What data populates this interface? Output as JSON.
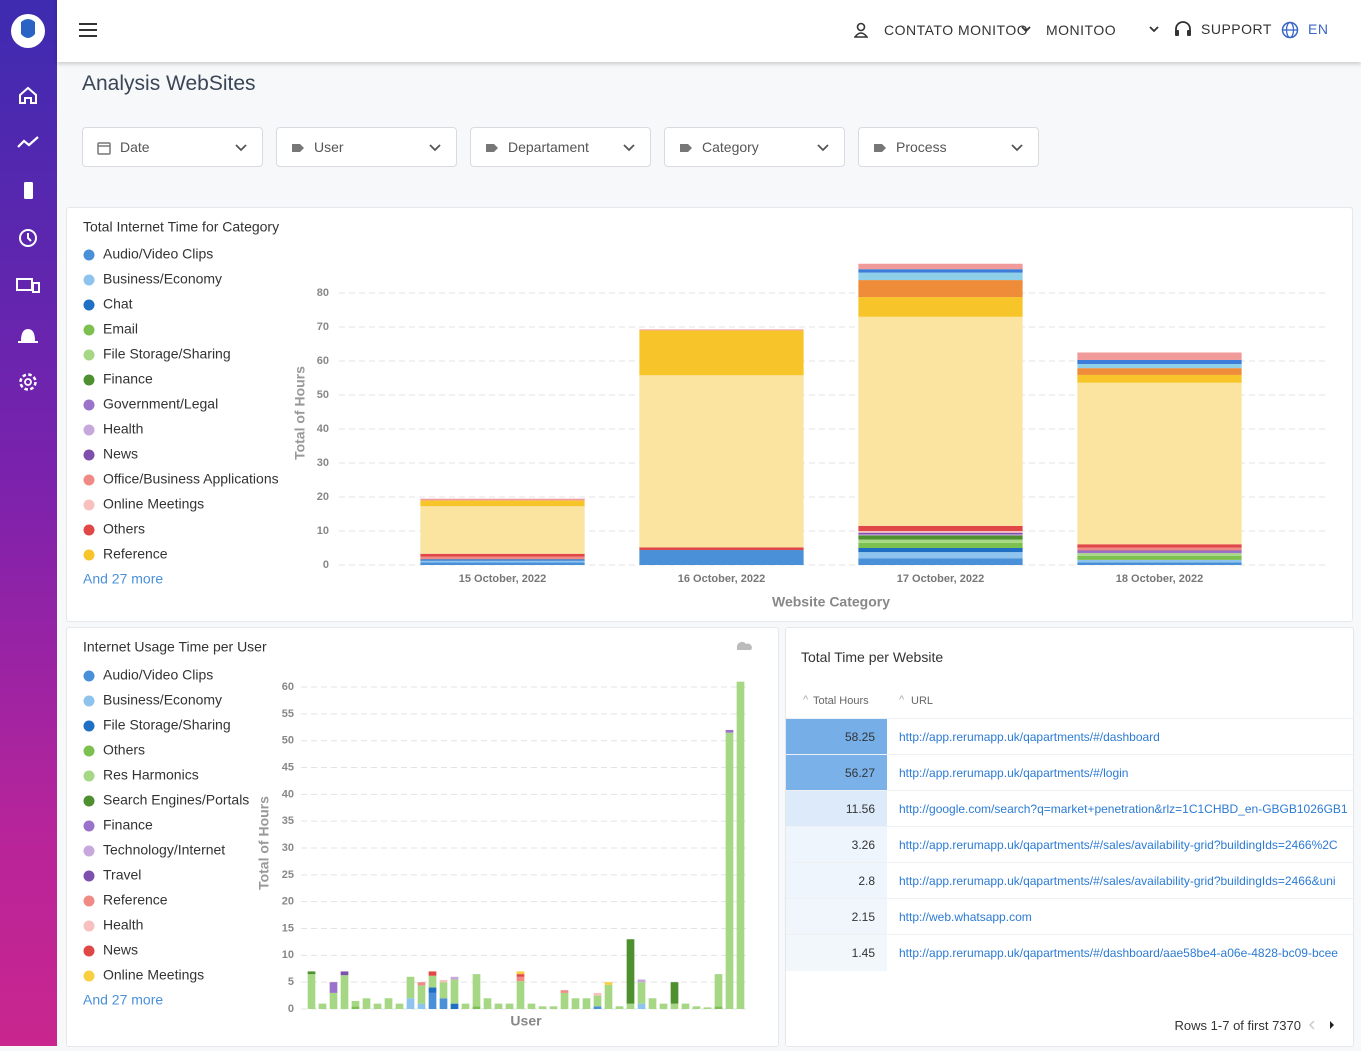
{
  "header": {
    "user": "CONTATO MONITOO",
    "company": "MONITOO",
    "support": "SUPPORT",
    "language": "EN"
  },
  "page_title": "Analysis WebSites",
  "filters": [
    "Date",
    "User",
    "Departament",
    "Category",
    "Process"
  ],
  "chart_data": [
    {
      "type": "stacked-bar",
      "title": "Total Internet Time for Category",
      "x_label": "Website Category",
      "y_label": "Total of Hours",
      "legend_more": "And 27 more",
      "categories": [
        "15 October, 2022",
        "16 October, 2022",
        "17 October, 2022",
        "18 October, 2022"
      ],
      "ylim": [
        0,
        90
      ],
      "yticks": [
        0,
        10,
        20,
        30,
        40,
        50,
        60,
        70,
        80
      ],
      "grid": true,
      "series": [
        {
          "name": "Audio/Video Clips",
          "color": "#4a90d9",
          "values": [
            0.8,
            4.4,
            2.0,
            0.8
          ]
        },
        {
          "name": "Business/Economy",
          "color": "#8ec3ee",
          "values": [
            0.5,
            0,
            1.8,
            0.7
          ]
        },
        {
          "name": "Chat",
          "color": "#1f6fc5",
          "values": [
            0.4,
            0,
            1.2,
            0
          ]
        },
        {
          "name": "Email",
          "color": "#7cc150",
          "values": [
            0,
            0,
            1.5,
            1.2
          ]
        },
        {
          "name": "File Storage/Sharing",
          "color": "#a6d785",
          "values": [
            0,
            0,
            1.0,
            0.8
          ]
        },
        {
          "name": "Finance",
          "color": "#4e8f2f",
          "values": [
            0,
            0,
            1.2,
            0
          ]
        },
        {
          "name": "Government/Legal",
          "color": "#9b72c9",
          "values": [
            0,
            0,
            0,
            0.5
          ]
        },
        {
          "name": "Health",
          "color": "#c7a8dd",
          "values": [
            0,
            0,
            0.3,
            0
          ]
        },
        {
          "name": "News",
          "color": "#7f4fae",
          "values": [
            0,
            0,
            0.5,
            0.3
          ]
        },
        {
          "name": "Office/Business Applications",
          "color": "#f08a84",
          "values": [
            0.8,
            0,
            0,
            0.8
          ]
        },
        {
          "name": "Online Meetings",
          "color": "#f9c0c0",
          "values": [
            0,
            0,
            0.5,
            0
          ]
        },
        {
          "name": "Others",
          "color": "#e04848",
          "values": [
            0.8,
            0.8,
            1.5,
            1.0
          ]
        },
        {
          "color": "#fbe3a0",
          "values": [
            14,
            50.6,
            61.5,
            47.5
          ]
        },
        {
          "name": "Reference",
          "color": "#f7c52a",
          "values": [
            1.7,
            13.2,
            5.8,
            2.3
          ]
        },
        {
          "color": "#ee8c3a",
          "values": [
            0,
            0,
            5,
            2
          ]
        },
        {
          "color": "#8fd0e8",
          "values": [
            0,
            0,
            2.2,
            1.2
          ]
        },
        {
          "color": "#3b7dd8",
          "values": [
            0,
            0,
            1,
            1.2
          ]
        },
        {
          "color": "#f09a9a",
          "values": [
            0.5,
            0.3,
            1.6,
            2.2
          ]
        }
      ]
    },
    {
      "type": "stacked-bar",
      "title": "Internet Usage Time per User",
      "x_label": "User",
      "y_label": "Total of Hours",
      "legend_more": "And 27 more",
      "categories": [
        null,
        null,
        null,
        null,
        null,
        null,
        null,
        null,
        null,
        null,
        null,
        null,
        null,
        null,
        null,
        null,
        null,
        null,
        null,
        null,
        null,
        null,
        null,
        null,
        null,
        null,
        null,
        null,
        null,
        null,
        null,
        null,
        null,
        null,
        null,
        null,
        null,
        null,
        null,
        null
      ],
      "ylim": [
        0,
        62
      ],
      "yticks": [
        0,
        5,
        10,
        15,
        20,
        25,
        30,
        35,
        40,
        45,
        50,
        55,
        60
      ],
      "grid": true,
      "series": [
        {
          "name": "Audio/Video Clips",
          "color": "#4a90d9",
          "values": [
            0,
            0,
            0,
            0,
            0,
            0,
            0,
            0,
            0,
            0,
            0,
            3,
            2,
            0,
            0,
            0,
            0,
            0,
            0,
            0,
            0,
            0,
            0,
            0,
            0,
            0,
            0.5,
            0,
            0,
            0,
            0,
            0,
            0,
            0,
            0,
            0,
            0,
            0,
            0,
            0
          ]
        },
        {
          "name": "Business/Economy",
          "color": "#8ec3ee",
          "values": [
            0,
            0,
            0,
            0,
            0,
            0,
            0,
            0,
            0,
            2,
            1,
            0,
            0,
            0,
            0,
            0,
            0,
            0,
            0,
            0,
            0,
            0,
            0,
            0,
            0,
            0,
            0,
            0,
            0,
            0,
            1,
            0,
            0,
            0,
            0,
            0,
            0,
            0,
            0,
            0
          ]
        },
        {
          "name": "File Storage/Sharing",
          "color": "#1f6fc5",
          "values": [
            0,
            0,
            0,
            0,
            0,
            0,
            0,
            0,
            0,
            0,
            0,
            1,
            0,
            1,
            0,
            0,
            0,
            0,
            0,
            0,
            0,
            0,
            0,
            0,
            0,
            0,
            0,
            0,
            0,
            0,
            0,
            0,
            0,
            0,
            0,
            0,
            0,
            0,
            0,
            0
          ]
        },
        {
          "name": "Others",
          "color": "#7cc150",
          "values": [
            0,
            0,
            0,
            0,
            0.5,
            0,
            0,
            0,
            0,
            0,
            0,
            0,
            0,
            0,
            0,
            0.5,
            0,
            0,
            0,
            0,
            0,
            0,
            0,
            0,
            0,
            0,
            0,
            0,
            0,
            0,
            0,
            0,
            0,
            0,
            0,
            0,
            0,
            0.5,
            0,
            0
          ]
        },
        {
          "name": "Res Harmonics",
          "color": "#a6d785",
          "values": [
            6.5,
            1,
            3,
            6.3,
            1,
            2,
            1,
            2,
            1,
            4,
            3.4,
            2.2,
            3,
            4.5,
            1,
            6,
            2,
            1,
            1,
            5.2,
            1,
            0.5,
            0.5,
            3,
            2,
            2,
            2,
            4.5,
            0.5,
            1,
            4,
            2,
            1,
            1,
            1,
            0.5,
            0.3,
            6,
            51.5,
            61
          ]
        },
        {
          "name": "Search Engines/Portals",
          "color": "#4e8f2f",
          "values": [
            0.5,
            0,
            0,
            0,
            0,
            0,
            0,
            0,
            0,
            0,
            0,
            0,
            0,
            0,
            0,
            0,
            0,
            0,
            0,
            0,
            0,
            0,
            0,
            0,
            0,
            0,
            0,
            0,
            0,
            12,
            0,
            0,
            0,
            4,
            0,
            0,
            0,
            0,
            0,
            0
          ]
        },
        {
          "name": "Finance",
          "color": "#9b72c9",
          "values": [
            0,
            0,
            2,
            0,
            0,
            0,
            0,
            0,
            0,
            0,
            0,
            0,
            0,
            0,
            0,
            0,
            0,
            0,
            0,
            0,
            0,
            0,
            0,
            0,
            0,
            0,
            0,
            0,
            0,
            0,
            0,
            0,
            0,
            0,
            0,
            0,
            0,
            0,
            0.5,
            0
          ]
        },
        {
          "name": "Technology/Internet",
          "color": "#c7a8dd",
          "values": [
            0,
            0,
            0,
            0,
            0,
            0,
            0,
            0,
            0,
            0,
            0,
            0,
            0,
            0.5,
            0,
            0,
            0,
            0,
            0,
            0,
            0,
            0,
            0,
            0,
            0,
            0,
            0,
            0,
            0,
            0,
            0.5,
            0,
            0,
            0,
            0,
            0,
            0,
            0,
            0,
            0
          ]
        },
        {
          "name": "Travel",
          "color": "#7f4fae",
          "values": [
            0,
            0,
            0,
            0.7,
            0,
            0,
            0,
            0,
            0,
            0,
            0,
            0,
            0,
            0,
            0,
            0,
            0,
            0,
            0,
            0,
            0,
            0,
            0,
            0,
            0,
            0,
            0,
            0,
            0,
            0,
            0,
            0,
            0,
            0,
            0,
            0,
            0,
            0,
            0,
            0
          ]
        },
        {
          "name": "Reference",
          "color": "#f08a84",
          "values": [
            0,
            0,
            0,
            0,
            0,
            0,
            0,
            0,
            0,
            0,
            0.6,
            0,
            0,
            0,
            0,
            0,
            0,
            0,
            0,
            0.8,
            0,
            0,
            0,
            0.5,
            0,
            0,
            0,
            0,
            0,
            0,
            0,
            0,
            0,
            0,
            0,
            0,
            0,
            0,
            0,
            0
          ]
        },
        {
          "name": "Health",
          "color": "#f9c0c0",
          "values": [
            0,
            0,
            0,
            0,
            0,
            0,
            0,
            0,
            0,
            0,
            0,
            0,
            0.4,
            0,
            0,
            0,
            0,
            0,
            0,
            0,
            0,
            0,
            0,
            0,
            0,
            0,
            0.5,
            0,
            0,
            0,
            0,
            0,
            0,
            0,
            0,
            0,
            0,
            0,
            0,
            0
          ]
        },
        {
          "name": "News",
          "color": "#e04848",
          "values": [
            0,
            0,
            0,
            0,
            0,
            0,
            0,
            0,
            0,
            0,
            0,
            0.8,
            0,
            0,
            0,
            0,
            0,
            0,
            0,
            0.5,
            0,
            0,
            0,
            0,
            0,
            0,
            0,
            0,
            0,
            0,
            0,
            0,
            0,
            0,
            0,
            0,
            0,
            0,
            0,
            0
          ]
        },
        {
          "name": "Online Meetings",
          "color": "#f7cf3f",
          "values": [
            0,
            0,
            0,
            0,
            0,
            0,
            0,
            0,
            0,
            0,
            0,
            0,
            0,
            0,
            0,
            0,
            0,
            0,
            0,
            0.5,
            0,
            0,
            0,
            0,
            0,
            0,
            0,
            0.5,
            0,
            0,
            0,
            0,
            0,
            0,
            0,
            0,
            0,
            0,
            0,
            0
          ]
        }
      ]
    }
  ],
  "table": {
    "title": "Total Time per Website",
    "columns": [
      "Total Hours",
      "URL"
    ],
    "rows": [
      [
        58.25,
        "http://app.rerumapp.uk/qapartments/#/dashboard"
      ],
      [
        56.27,
        "http://app.rerumapp.uk/qapartments/#/login"
      ],
      [
        11.56,
        "http://google.com/search?q=market+penetration&rlz=1C1CHBD_en-GBGB1026GB1"
      ],
      [
        3.26,
        "http://app.rerumapp.uk/qapartments/#/sales/availability-grid?buildingIds=2466%2C"
      ],
      [
        2.8,
        "http://app.rerumapp.uk/qapartments/#/sales/availability-grid?buildingIds=2466&uni"
      ],
      [
        2.15,
        "http://web.whatsapp.com"
      ],
      [
        1.45,
        "http://app.rerumapp.uk/qapartments/#/dashboard/aae58be4-a06e-4828-bc09-bcee"
      ]
    ],
    "footer": "Rows 1-7 of first 7370"
  }
}
